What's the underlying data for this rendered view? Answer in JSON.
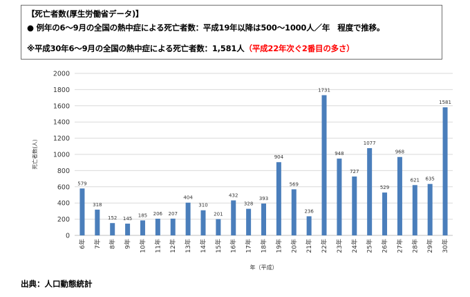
{
  "header": {
    "title": "【死亡者数(厚生労働省データ)】",
    "bullet": "●",
    "note": "例年の6～9月の全国の熱中症による死亡者数：平成19年以降は500～1000人／年　程度で推移。",
    "highlight_main": "※平成30年6～9月の全国の熱中症による死亡者数：1,581人",
    "highlight_red": "（平成22年次ぐ2番目の多さ）"
  },
  "colors": {
    "bar": "#4a7ebb",
    "accent_red": "#ff0000",
    "grid": "#d9d9d9"
  },
  "chart_data": {
    "type": "bar",
    "ylabel": "死亡者数(人)",
    "xlabel": "年（平成）",
    "ylim": [
      0,
      2000
    ],
    "yticks": [
      0,
      200,
      400,
      600,
      800,
      1000,
      1200,
      1400,
      1600,
      1800,
      2000
    ],
    "grid": true,
    "legend": "none",
    "categories": [
      "6年",
      "7年",
      "8年",
      "9年",
      "10年",
      "11年",
      "12年",
      "13年",
      "14年",
      "15年",
      "16年",
      "17年",
      "18年",
      "19年",
      "20年",
      "21年",
      "22年",
      "23年",
      "24年",
      "25年",
      "26年",
      "27年",
      "28年",
      "29年",
      "30年"
    ],
    "values": [
      579,
      318,
      152,
      145,
      185,
      206,
      207,
      404,
      310,
      201,
      432,
      328,
      393,
      904,
      569,
      236,
      1731,
      948,
      727,
      1077,
      529,
      968,
      621,
      635,
      1581
    ]
  },
  "footer": {
    "source": "出典：人口動態統計"
  }
}
